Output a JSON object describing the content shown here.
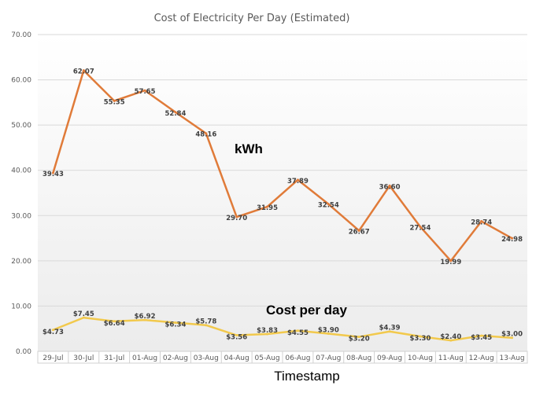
{
  "chart_data": {
    "type": "line",
    "title": "Cost of Electricity Per Day (Estimated)",
    "xlabel": "Timestamp",
    "ylabel": "",
    "ylim": [
      0,
      70
    ],
    "yticks": [
      "0.00",
      "10.00",
      "20.00",
      "30.00",
      "40.00",
      "50.00",
      "60.00",
      "70.00"
    ],
    "grid": true,
    "categories": [
      "29-Jul",
      "30-Jul",
      "31-Jul",
      "01-Aug",
      "02-Aug",
      "03-Aug",
      "04-Aug",
      "05-Aug",
      "06-Aug",
      "07-Aug",
      "08-Aug",
      "09-Aug",
      "10-Aug",
      "11-Aug",
      "12-Aug",
      "13-Aug"
    ],
    "series": [
      {
        "name": "kWh",
        "color": "#E07B39",
        "values": [
          39.43,
          62.07,
          55.35,
          57.65,
          52.84,
          48.16,
          29.7,
          31.95,
          37.89,
          32.54,
          26.67,
          36.6,
          27.54,
          19.99,
          28.74,
          24.98
        ],
        "labels": [
          "39.43",
          "62.07",
          "55.35",
          "57.65",
          "52.84",
          "48.16",
          "29.70",
          "31.95",
          "37.89",
          "32.54",
          "26.67",
          "36.60",
          "27.54",
          "19.99",
          "28.74",
          "24.98"
        ]
      },
      {
        "name": "Cost per day",
        "color": "#F2C94C",
        "values": [
          4.73,
          7.45,
          6.64,
          6.92,
          6.34,
          5.78,
          3.56,
          3.83,
          4.55,
          3.9,
          3.2,
          4.39,
          3.3,
          2.4,
          3.45,
          3.0
        ],
        "labels": [
          "$4.73",
          "$7.45",
          "$6.64",
          "$6.92",
          "$6.34",
          "$5.78",
          "$3.56",
          "$3.83",
          "$4.55",
          "$3.90",
          "$3.20",
          "$4.39",
          "$3.30",
          "$2.40",
          "$3.45",
          "$3.00"
        ]
      }
    ]
  }
}
